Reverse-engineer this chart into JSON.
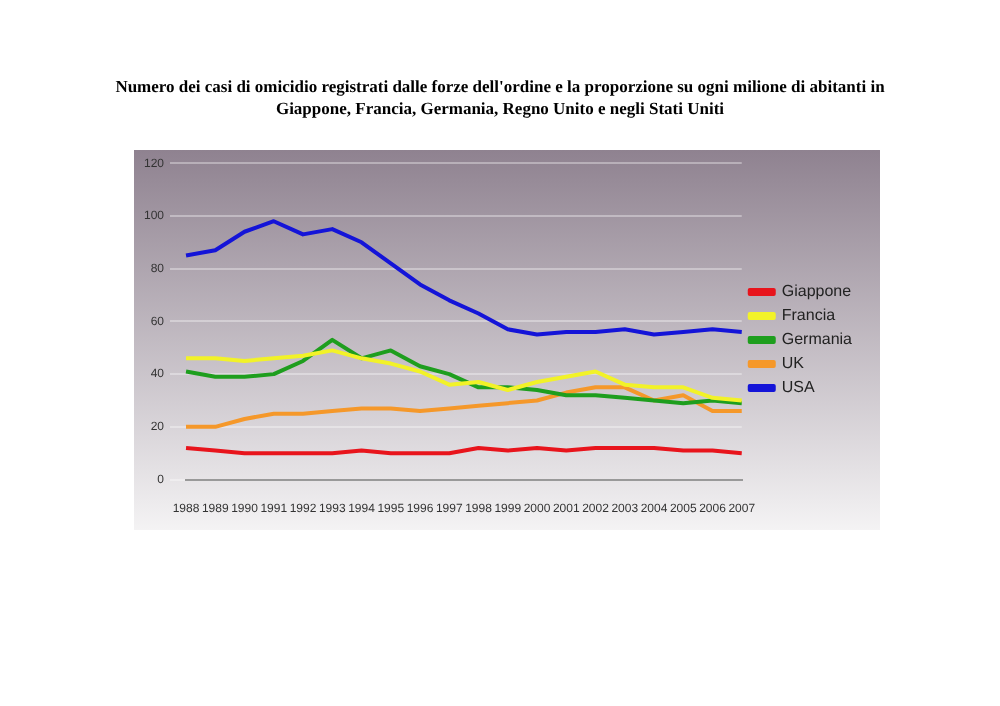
{
  "chart_data": {
    "type": "line",
    "title": "Numero dei casi di omicidio registrati dalle forze dell'ordine e la proporzione su ogni milione di abitanti in Giappone, Francia, Germania, Regno Unito e negli Stati Uniti",
    "categories": [
      "1988",
      "1989",
      "1990",
      "1991",
      "1992",
      "1993",
      "1994",
      "1995",
      "1996",
      "1997",
      "1998",
      "1999",
      "2000",
      "2001",
      "2002",
      "2003",
      "2004",
      "2005",
      "2006",
      "2007"
    ],
    "series": [
      {
        "name": "Giappone",
        "color": "#e8141c",
        "values": [
          12,
          11,
          10,
          10,
          10,
          10,
          11,
          10,
          10,
          10,
          12,
          11,
          12,
          11,
          12,
          12,
          12,
          11,
          11,
          10
        ]
      },
      {
        "name": "Francia",
        "color": "#f2f228",
        "values": [
          46,
          46,
          45,
          46,
          47,
          49,
          46,
          44,
          41,
          36,
          37,
          34,
          37,
          39,
          41,
          36,
          35,
          35,
          31,
          30
        ]
      },
      {
        "name": "Germania",
        "color": "#1e9e1e",
        "values": [
          41,
          39,
          39,
          40,
          45,
          53,
          46,
          49,
          43,
          40,
          35,
          35,
          34,
          32,
          32,
          31,
          30,
          29,
          30,
          29
        ]
      },
      {
        "name": "UK",
        "color": "#f5982a",
        "values": [
          20,
          20,
          23,
          25,
          25,
          26,
          27,
          27,
          26,
          27,
          28,
          29,
          30,
          33,
          35,
          35,
          30,
          32,
          26,
          26
        ]
      },
      {
        "name": "USA",
        "color": "#1414d8",
        "values": [
          85,
          87,
          94,
          98,
          93,
          95,
          90,
          82,
          74,
          68,
          63,
          57,
          55,
          56,
          56,
          57,
          55,
          56,
          57,
          56
        ]
      }
    ],
    "ylim": [
      0,
      120
    ],
    "yticks": [
      0,
      20,
      40,
      60,
      80,
      100,
      120
    ],
    "grid": "y",
    "legend": "right",
    "marker": "none",
    "line_style": "solid"
  }
}
